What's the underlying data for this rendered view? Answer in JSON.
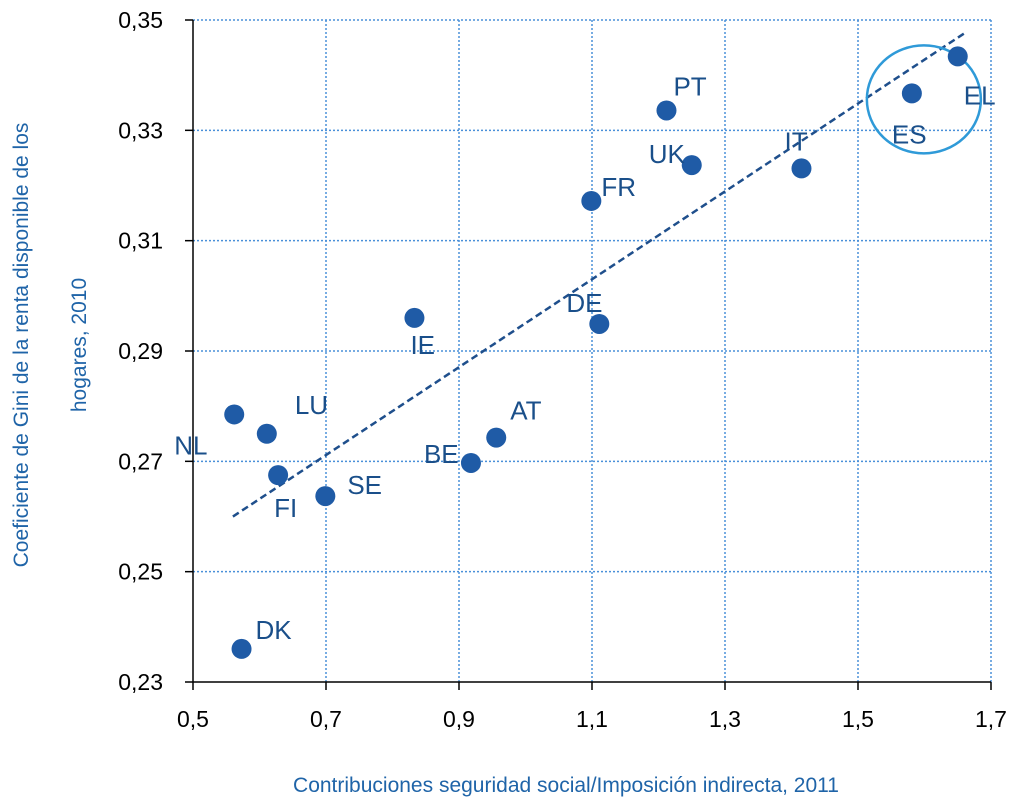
{
  "chart_data": {
    "type": "scatter",
    "title": "",
    "xlabel": "Contribuciones seguridad social/Imposición indirecta, 2011",
    "ylabel_lines": [
      "Coeficiente de Gini de la renta disponible de los",
      "hogares, 2010"
    ],
    "xlim": [
      0.5,
      1.7
    ],
    "ylim": [
      0.23,
      0.35
    ],
    "x_ticks": [
      0.5,
      0.7,
      0.9,
      1.1,
      1.3,
      1.5,
      1.7
    ],
    "y_ticks": [
      0.23,
      0.25,
      0.27,
      0.29,
      0.31,
      0.33,
      0.35
    ],
    "x_tick_labels": [
      "0,5",
      "0,7",
      "0,9",
      "1,1",
      "1,3",
      "1,5",
      "1,7"
    ],
    "y_tick_labels": [
      "0,23",
      "0,25",
      "0,27",
      "0,29",
      "0,31",
      "0,33",
      "0,35"
    ],
    "grid": true,
    "trendline": {
      "style": "dashed",
      "x0": 0.56,
      "x1": 1.66
    },
    "circled_points": [
      "ES"
    ],
    "colors": {
      "point": "#1f5ba6",
      "trend": "#1f4f8c",
      "grid": "#4a90d9",
      "circle": "#2f9ad8",
      "axis_title": "#1f64a8",
      "label": "#1a4f8a"
    },
    "points": [
      {
        "label": "DK",
        "x": 0.573,
        "y": 0.236
      },
      {
        "label": "NL",
        "x": 0.562,
        "y": 0.2785
      },
      {
        "label": "LU",
        "x": 0.611,
        "y": 0.275
      },
      {
        "label": "FI",
        "x": 0.628,
        "y": 0.2675
      },
      {
        "label": "SE",
        "x": 0.699,
        "y": 0.2637
      },
      {
        "label": "IE",
        "x": 0.833,
        "y": 0.296
      },
      {
        "label": "BE",
        "x": 0.918,
        "y": 0.2697
      },
      {
        "label": "AT",
        "x": 0.956,
        "y": 0.2743
      },
      {
        "label": "DE",
        "x": 1.111,
        "y": 0.2949
      },
      {
        "label": "FR",
        "x": 1.099,
        "y": 0.3172
      },
      {
        "label": "PT",
        "x": 1.212,
        "y": 0.3336
      },
      {
        "label": "UK",
        "x": 1.25,
        "y": 0.3237
      },
      {
        "label": "IT",
        "x": 1.415,
        "y": 0.3231
      },
      {
        "label": "ES",
        "x": 1.581,
        "y": 0.3367
      },
      {
        "label": "EL",
        "x": 1.65,
        "y": 0.3434
      }
    ]
  }
}
